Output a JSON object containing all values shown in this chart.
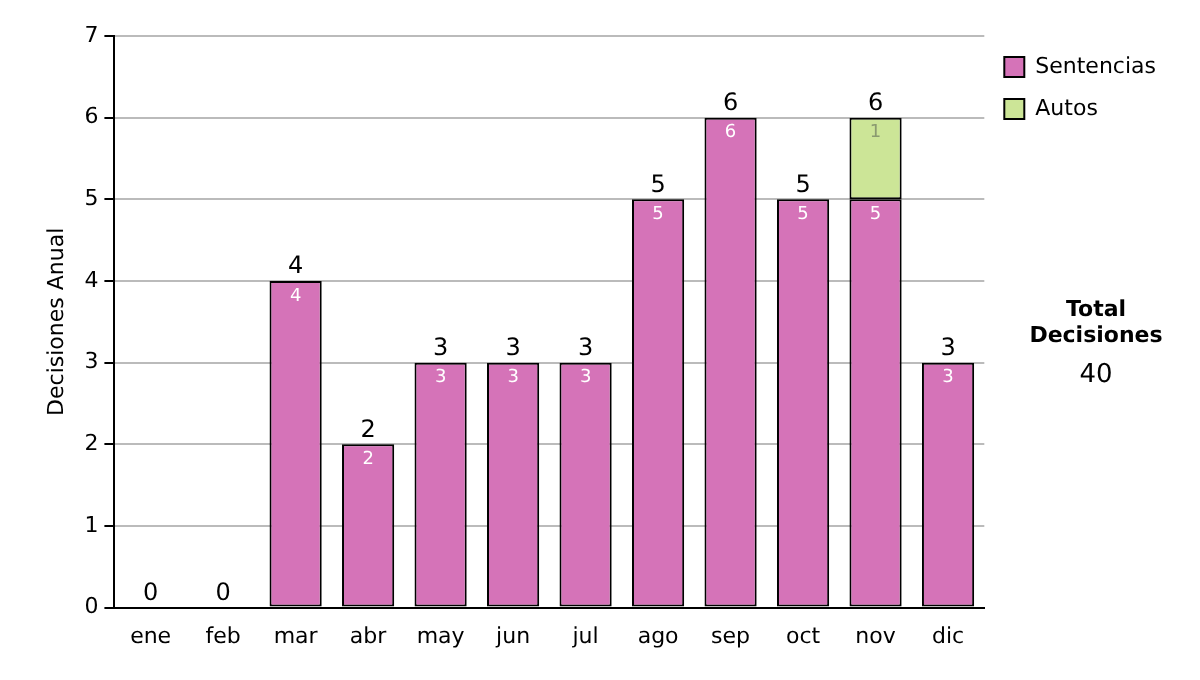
{
  "chart_data": {
    "type": "bar",
    "stacked": true,
    "ylabel": "Decisiones Anual",
    "categories": [
      "ene",
      "feb",
      "mar",
      "abr",
      "may",
      "jun",
      "jul",
      "ago",
      "sep",
      "oct",
      "nov",
      "dic"
    ],
    "series": [
      {
        "name": "Sentencias",
        "color": "#d573b8",
        "values": [
          0,
          0,
          4,
          2,
          3,
          3,
          3,
          5,
          6,
          5,
          5,
          3
        ],
        "value_labels": [
          null,
          null,
          "4",
          "2",
          "3",
          "3",
          "3",
          "5",
          "6",
          "5",
          "5",
          "3"
        ]
      },
      {
        "name": "Autos",
        "color": "#cce597",
        "values": [
          null,
          null,
          null,
          null,
          null,
          null,
          null,
          null,
          null,
          null,
          1,
          null
        ],
        "value_labels": [
          null,
          null,
          null,
          null,
          null,
          null,
          null,
          null,
          null,
          null,
          "1",
          null
        ]
      }
    ],
    "totals": [
      "0",
      "0",
      "4",
      "2",
      "3",
      "3",
      "3",
      "5",
      "6",
      "5",
      "6",
      "3"
    ],
    "ylim": [
      0,
      7
    ],
    "yticks": [
      0,
      1,
      2,
      3,
      4,
      5,
      6,
      7
    ],
    "grid": "y",
    "legend": "right",
    "annotations": [
      "Total Decisiones",
      "40"
    ]
  }
}
